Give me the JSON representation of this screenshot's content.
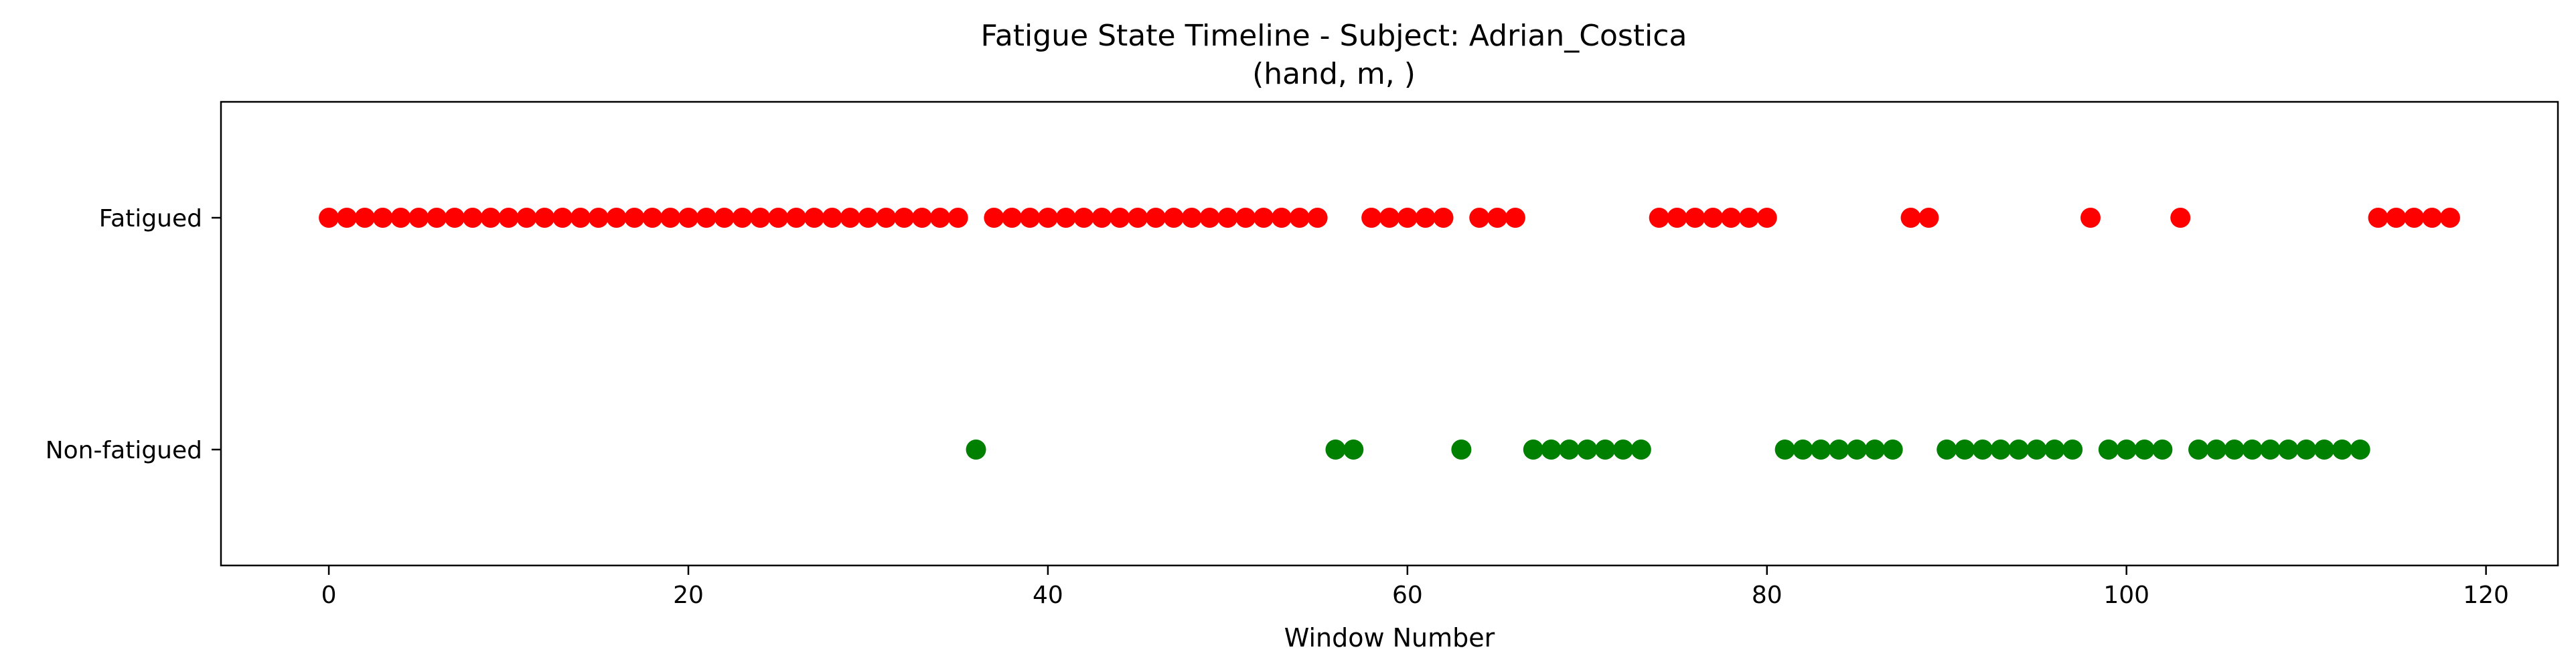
{
  "chart_data": {
    "type": "scatter",
    "title": "Fatigue State Timeline - Subject: Adrian_Costica",
    "subtitle": "(hand, m, )",
    "xlabel": "Window Number",
    "ylabel": "",
    "xlim": [
      -6,
      124
    ],
    "ylim": [
      -0.5,
      1.5
    ],
    "x_ticks": [
      0,
      20,
      40,
      60,
      80,
      100,
      120
    ],
    "y_categories": [
      "Non-fatigued",
      "Fatigued"
    ],
    "grid": false,
    "series": [
      {
        "state": 1,
        "color": "#ff0000",
        "x": [
          0,
          1,
          2,
          3,
          4,
          5,
          6,
          7,
          8,
          9,
          10,
          11,
          12,
          13,
          14,
          15,
          16,
          17,
          18,
          19,
          20,
          21,
          22,
          23,
          24,
          25,
          26,
          27,
          28,
          29,
          30,
          31,
          32,
          33,
          34,
          35,
          37,
          38,
          39,
          40,
          41,
          42,
          43,
          44,
          45,
          46,
          47,
          48,
          49,
          50,
          51,
          52,
          53,
          54,
          55,
          58,
          59,
          60,
          61,
          62,
          64,
          65,
          66,
          74,
          75,
          76,
          77,
          78,
          79,
          80,
          88,
          89,
          98,
          103,
          114,
          115,
          116,
          117,
          118
        ]
      },
      {
        "state": 0,
        "color": "#008000",
        "x": [
          36,
          56,
          57,
          63,
          67,
          68,
          69,
          70,
          71,
          72,
          73,
          81,
          82,
          83,
          84,
          85,
          86,
          87,
          90,
          91,
          92,
          93,
          94,
          95,
          96,
          97,
          99,
          100,
          101,
          102,
          104,
          105,
          106,
          107,
          108,
          109,
          110,
          111,
          112,
          113
        ]
      }
    ]
  }
}
